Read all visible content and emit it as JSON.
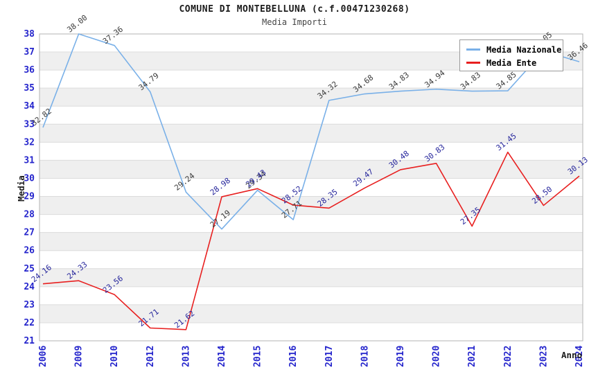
{
  "header": {
    "title": "COMUNE DI MONTEBELLUNA (c.f.00471230268)",
    "subtitle": "Media Importi"
  },
  "legend": {
    "items": [
      {
        "label": "Media Nazionale",
        "color": "#79b0e8"
      },
      {
        "label": "Media Ente",
        "color": "#e81f1f"
      }
    ]
  },
  "axes": {
    "x_label": "Anno",
    "y_label": "Media",
    "tick_color": "#2424cc",
    "y_ticks": [
      21,
      22,
      23,
      24,
      25,
      26,
      27,
      28,
      29,
      30,
      31,
      32,
      33,
      34,
      35,
      36,
      37,
      38
    ]
  },
  "chart_data": {
    "type": "line",
    "title": "COMUNE DI MONTEBELLUNA (c.f.00471230268)",
    "subtitle": "Media Importi",
    "xlabel": "Anno",
    "ylabel": "Media",
    "ylim": [
      21,
      38
    ],
    "grid": true,
    "legend_position": "top-right",
    "background_bands": [
      "#ffffff",
      "#efefef"
    ],
    "categories": [
      "2006",
      "2009",
      "2010",
      "2012",
      "2013",
      "2014",
      "2015",
      "2016",
      "2017",
      "2018",
      "2019",
      "2020",
      "2021",
      "2022",
      "2023",
      "2024"
    ],
    "series": [
      {
        "name": "Media Nazionale",
        "color": "#79b0e8",
        "label_color": "#3a3a3a",
        "values": [
          32.82,
          38.0,
          37.36,
          34.79,
          29.24,
          27.19,
          29.34,
          27.71,
          34.32,
          34.68,
          34.83,
          34.94,
          34.83,
          34.85,
          37.05,
          36.46
        ]
      },
      {
        "name": "Media Ente",
        "color": "#e81f1f",
        "label_color": "#26269c",
        "values": [
          24.16,
          24.33,
          23.56,
          21.71,
          21.62,
          28.98,
          29.43,
          28.52,
          28.35,
          29.47,
          30.48,
          30.83,
          27.35,
          31.45,
          28.5,
          30.13
        ]
      }
    ]
  }
}
